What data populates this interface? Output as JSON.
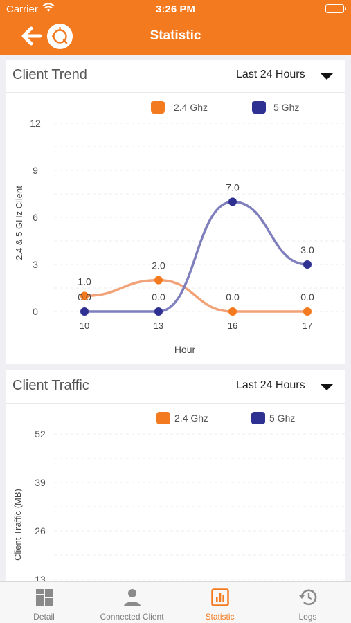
{
  "status_bar": {
    "carrier": "Carrier",
    "time": "3:26 PM"
  },
  "nav": {
    "title": "Statistic"
  },
  "colors": {
    "accent": "#f47a20",
    "series_24": "#f47a20",
    "series_5": "#2e3192",
    "line_24": "#f2a278",
    "line_5": "#7f7fbd"
  },
  "client_trend": {
    "title": "Client Trend",
    "range": "Last 24 Hours",
    "chart_data": {
      "type": "line",
      "x": [
        "10",
        "13",
        "16",
        "17"
      ],
      "xlabel": "Hour",
      "ylabel": "2.4 & 5 GHz Client",
      "yticks": [
        "12",
        "9",
        "6",
        "3",
        "0"
      ],
      "ylim": [
        0,
        12
      ],
      "legend_placement": "top",
      "series": [
        {
          "name": "2.4 Ghz",
          "values": [
            1.0,
            2.0,
            0.0,
            0.0
          ],
          "labels": [
            "1.0",
            "2.0",
            "0.0",
            "0.0"
          ]
        },
        {
          "name": "5 Ghz",
          "values": [
            0.0,
            0.0,
            7.0,
            3.0
          ],
          "labels": [
            "0.0",
            "0.0",
            "7.0",
            "3.0"
          ]
        }
      ]
    }
  },
  "client_traffic": {
    "title": "Client Traffic",
    "range": "Last 24 Hours",
    "chart_data": {
      "type": "line",
      "ylabel": "Client Traffic (MB)",
      "yticks": [
        "52",
        "39",
        "26",
        "13"
      ],
      "ylim": [
        0,
        52
      ],
      "legend_placement": "top",
      "series": [
        {
          "name": "2.4 Ghz",
          "values": []
        },
        {
          "name": "5 Ghz",
          "values": []
        }
      ]
    }
  },
  "tabs": [
    {
      "label": "Detail",
      "icon": "grid-icon",
      "active": false
    },
    {
      "label": "Connected Client",
      "icon": "person-icon",
      "active": false
    },
    {
      "label": "Statistic",
      "icon": "bar-chart-icon",
      "active": true
    },
    {
      "label": "Logs",
      "icon": "history-icon",
      "active": false
    }
  ]
}
